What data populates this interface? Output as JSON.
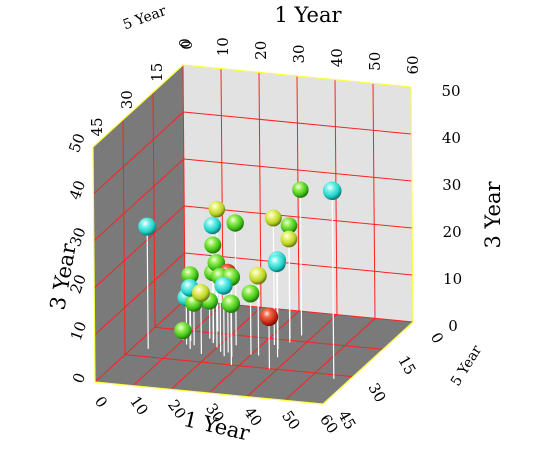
{
  "chart_data": {
    "type": "scatter",
    "subtype": "3d-bubble",
    "title": "",
    "axes": {
      "x": {
        "label": "1 Year",
        "range": [
          0,
          60
        ],
        "ticks": [
          "0",
          "10",
          "20",
          "30",
          "40",
          "50",
          "60"
        ]
      },
      "y": {
        "label": "3 Year",
        "range": [
          0,
          50
        ],
        "ticks": [
          "0",
          "10",
          "20",
          "30",
          "40",
          "50"
        ]
      },
      "z": {
        "label": "5 Year",
        "range": [
          0,
          45
        ],
        "ticks": [
          "0",
          "15",
          "30",
          "45"
        ]
      }
    },
    "grid": true,
    "legend": "none",
    "colors": {
      "wall_light": "#e2e2e2",
      "wall_dark": "#7a7a7a",
      "grid": "#ff2020",
      "edge": "#ffff40",
      "drop_line": "#ffffff",
      "bubble_cyan": "#1fcfc6",
      "bubble_green": "#5ad41e",
      "bubble_yellow": "#c8e02a",
      "bubble_red": "#d42a1a"
    },
    "points": [
      {
        "x": 56,
        "y": 40,
        "z": 32,
        "color": "cyan"
      },
      {
        "x": 37,
        "y": 31,
        "z": 12,
        "color": "green"
      },
      {
        "x": 33,
        "y": 27,
        "z": 18,
        "color": "yellow"
      },
      {
        "x": 35,
        "y": 24,
        "z": 14,
        "color": "green"
      },
      {
        "x": 36,
        "y": 22,
        "z": 16,
        "color": "yellow"
      },
      {
        "x": 35,
        "y": 19,
        "z": 20,
        "color": "cyan"
      },
      {
        "x": 37,
        "y": 20,
        "z": 24,
        "color": "cyan"
      },
      {
        "x": 32,
        "y": 17,
        "z": 24,
        "color": "yellow"
      },
      {
        "x": 24,
        "y": 26,
        "z": 20,
        "color": "green"
      },
      {
        "x": 16,
        "y": 26,
        "z": 14,
        "color": "yellow"
      },
      {
        "x": 18,
        "y": 25,
        "z": 20,
        "color": "cyan"
      },
      {
        "x": 4,
        "y": 26,
        "z": 26,
        "color": "cyan"
      },
      {
        "x": 17,
        "y": 20,
        "z": 18,
        "color": "green"
      },
      {
        "x": 20,
        "y": 18,
        "z": 22,
        "color": "green"
      },
      {
        "x": 24,
        "y": 17,
        "z": 24,
        "color": "red"
      },
      {
        "x": 26,
        "y": 17,
        "z": 26,
        "color": "green"
      },
      {
        "x": 22,
        "y": 16,
        "z": 24,
        "color": "green"
      },
      {
        "x": 14,
        "y": 13,
        "z": 24,
        "color": "cyan"
      },
      {
        "x": 18,
        "y": 15,
        "z": 20,
        "color": "green"
      },
      {
        "x": 18,
        "y": 13,
        "z": 26,
        "color": "yellow"
      },
      {
        "x": 24,
        "y": 15,
        "z": 26,
        "color": "cyan"
      },
      {
        "x": 28,
        "y": 13,
        "z": 30,
        "color": "green"
      },
      {
        "x": 12,
        "y": 14,
        "z": 20,
        "color": "green"
      },
      {
        "x": 12,
        "y": 10,
        "z": 22,
        "color": "cyan"
      },
      {
        "x": 16,
        "y": 8,
        "z": 18,
        "color": "green"
      },
      {
        "x": 14,
        "y": 9,
        "z": 22,
        "color": "green"
      },
      {
        "x": 38,
        "y": 11,
        "z": 30,
        "color": "red"
      },
      {
        "x": 30,
        "y": 13,
        "z": 24,
        "color": "green"
      },
      {
        "x": 12,
        "y": 9,
        "z": 20,
        "color": "cyan"
      },
      {
        "x": 10,
        "y": 2,
        "z": 20,
        "color": "green"
      }
    ]
  }
}
